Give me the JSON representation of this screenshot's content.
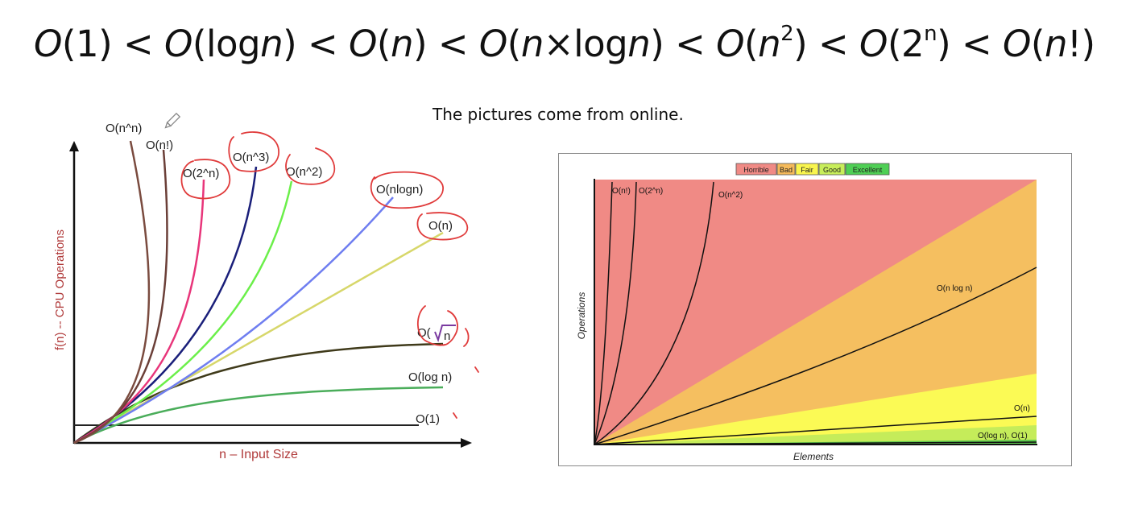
{
  "title": {
    "t1": "(1) < ",
    "t2": "(log",
    "t3": ") < ",
    "t4": "(",
    "t5": ") < ",
    "t6": "(",
    "t7": "×log",
    "t8": ") < ",
    "t9": "(",
    "t10": ") < ",
    "t11": "(2",
    "t12": ") < ",
    "t13": "(",
    "t14": "!)",
    "O": "O",
    "n": "n",
    "sup2": "2",
    "supn": "n"
  },
  "caption": "The pictures come from online.",
  "left_chart": {
    "ylabel": "f(n) -- CPU Operations",
    "xlabel": "n – Input Size",
    "colors": {
      "nn": "#7a4b3f",
      "nfact": "#6b3f38",
      "exp": "#e8357a",
      "cube": "#1a1f7a",
      "sq": "#6bef4a",
      "nlogn": "#6f7ef0",
      "n": "#d7d76a",
      "sqrt": "#3f3a1a",
      "logn": "#4aad5a",
      "one": "#222222",
      "annot": "#e03b3b"
    },
    "labels": {
      "nn": "O(n^n)",
      "nfact": "O(n!)",
      "exp": "O(2^n)",
      "cube": "O(n^3)",
      "sq": "O(n^2)",
      "nlogn": "O(nlogn)",
      "n": "O(n)",
      "sqrt_a": "O(",
      "sqrt_b": "n",
      "logn": "O(log n)",
      "one": "O(1)"
    }
  },
  "right_chart": {
    "legend": [
      "Horrible",
      "Bad",
      "Fair",
      "Good",
      "Excellent"
    ],
    "legend_colors": [
      "#f08a85",
      "#f5ba5a",
      "#f9f54d",
      "#c8ee5a",
      "#4fcf55"
    ],
    "region_colors": {
      "horrible": "#f08a85",
      "bad": "#f5bf60",
      "fair": "#fbfa55",
      "good": "#c5ec5a",
      "excellent": "#5cc84e"
    },
    "ylabel": "Operations",
    "xlabel": "Elements",
    "labels": {
      "fact": "O(n!)",
      "exp": "O(2^n)",
      "sq": "O(n^2)",
      "nlogn": "O(n log n)",
      "n": "O(n)",
      "log1": "O(log n), O(1)"
    }
  }
}
